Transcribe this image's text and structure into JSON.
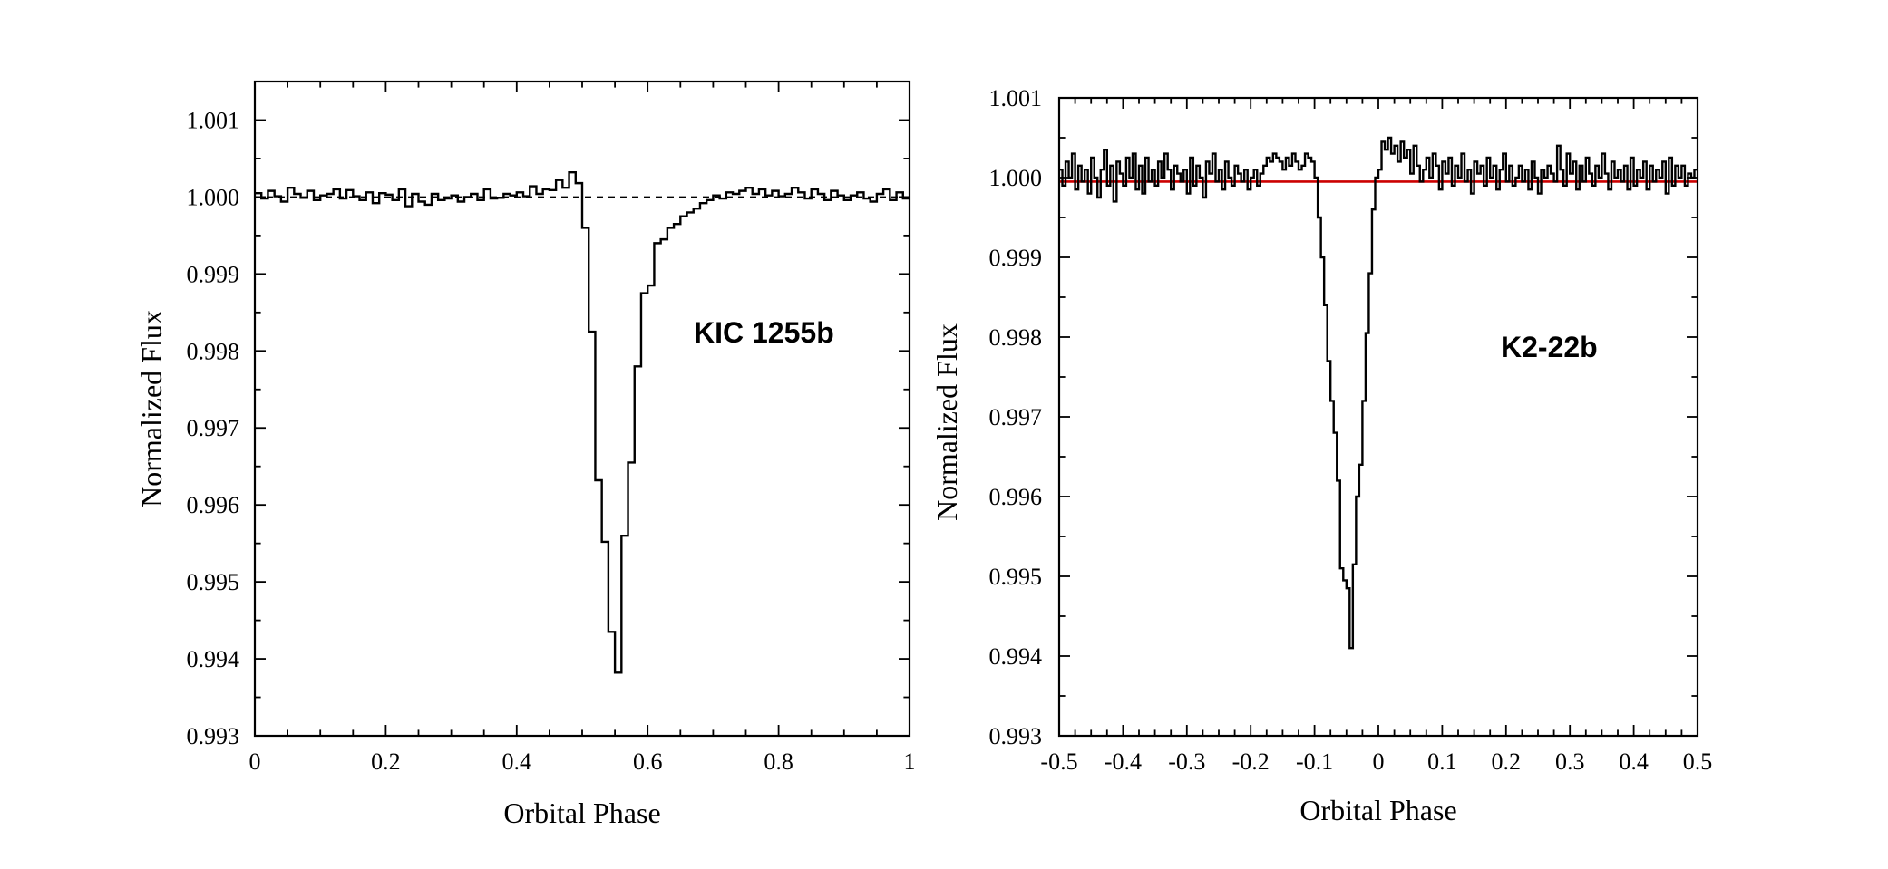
{
  "chart_data": [
    {
      "type": "line",
      "step": true,
      "annotation": "KIC 1255b",
      "xlabel": "Orbital Phase",
      "ylabel": "Normalized Flux",
      "xlim": [
        0,
        1
      ],
      "ylim": [
        0.993,
        1.0015
      ],
      "xticks": [
        0,
        0.2,
        0.4,
        0.6,
        0.8,
        1
      ],
      "xtick_labels": [
        "0",
        "0.2",
        "0.4",
        "0.6",
        "0.8",
        "1"
      ],
      "yticks": [
        0.993,
        0.994,
        0.995,
        0.996,
        0.997,
        0.998,
        0.999,
        1.0,
        1.001
      ],
      "ytick_labels": [
        "0.993",
        "0.994",
        "0.995",
        "0.996",
        "0.997",
        "0.998",
        "0.999",
        "1.000",
        "1.001"
      ],
      "reference_line": {
        "y": 1.0,
        "style": "dashed",
        "color": "#000000"
      },
      "series_color": "#000000",
      "x": [
        0.0,
        0.01,
        0.02,
        0.03,
        0.04,
        0.05,
        0.06,
        0.07,
        0.08,
        0.09,
        0.1,
        0.11,
        0.12,
        0.13,
        0.14,
        0.15,
        0.16,
        0.17,
        0.18,
        0.19,
        0.2,
        0.21,
        0.22,
        0.23,
        0.24,
        0.25,
        0.26,
        0.27,
        0.28,
        0.29,
        0.3,
        0.31,
        0.32,
        0.33,
        0.34,
        0.35,
        0.36,
        0.37,
        0.38,
        0.39,
        0.4,
        0.41,
        0.42,
        0.43,
        0.44,
        0.45,
        0.46,
        0.47,
        0.48,
        0.49,
        0.5,
        0.51,
        0.52,
        0.53,
        0.54,
        0.55,
        0.56,
        0.57,
        0.58,
        0.59,
        0.6,
        0.61,
        0.62,
        0.63,
        0.64,
        0.65,
        0.66,
        0.67,
        0.68,
        0.69,
        0.7,
        0.71,
        0.72,
        0.73,
        0.74,
        0.75,
        0.76,
        0.77,
        0.78,
        0.79,
        0.8,
        0.81,
        0.82,
        0.83,
        0.84,
        0.85,
        0.86,
        0.87,
        0.88,
        0.89,
        0.9,
        0.91,
        0.92,
        0.93,
        0.94,
        0.95,
        0.96,
        0.97,
        0.98,
        0.99
      ],
      "y": [
        1.00005,
        0.99998,
        1.00008,
        1.00001,
        0.99994,
        1.00012,
        1.00004,
        0.99999,
        1.00008,
        0.99996,
        1.00002,
        1.00004,
        1.0001,
        0.99998,
        1.00009,
        1.00001,
        0.99996,
        1.00006,
        0.99992,
        1.00005,
        1.00003,
        0.99996,
        1.0001,
        0.99988,
        1.00004,
        0.99994,
        0.9999,
        1.00004,
        0.99996,
        0.99998,
        1.00002,
        0.99994,
        1.0,
        1.00004,
        0.99996,
        1.0001,
        0.99998,
        0.99999,
        1.00004,
        1.00002,
        1.00006,
        1.00001,
        1.00014,
        1.00004,
        1.0001,
        1.00009,
        1.00022,
        1.00012,
        1.00032,
        1.00018,
        0.9996,
        0.99825,
        0.99632,
        0.99552,
        0.99435,
        0.99382,
        0.9956,
        0.99655,
        0.9978,
        0.99875,
        0.99885,
        0.9994,
        0.99945,
        0.9996,
        0.99965,
        0.99975,
        0.9998,
        0.99985,
        0.99992,
        0.99996,
        1.00002,
        0.99998,
        1.00006,
        1.00004,
        1.00008,
        1.00012,
        1.00004,
        1.0001,
        1.00002,
        1.00008,
        1.00001,
        1.00004,
        1.00012,
        1.00006,
        0.99998,
        1.0001,
        1.00004,
        0.99996,
        1.00008,
        1.00002,
        0.99996,
        1.00002,
        1.00006,
        0.99998,
        0.99994,
        1.00004,
        1.0001,
        0.99996,
        1.00006,
        0.99998
      ]
    },
    {
      "type": "line",
      "step": true,
      "annotation": "K2-22b",
      "xlabel": "Orbital Phase",
      "ylabel": "Normalized Flux",
      "xlim": [
        -0.5,
        0.5
      ],
      "ylim": [
        0.993,
        1.001
      ],
      "xticks": [
        -0.5,
        -0.4,
        -0.3,
        -0.2,
        -0.1,
        0,
        0.1,
        0.2,
        0.3,
        0.4,
        0.5
      ],
      "xtick_labels": [
        "-0.5",
        "-0.4",
        "-0.3",
        "-0.2",
        "-0.1",
        "0",
        "0.1",
        "0.2",
        "0.3",
        "0.4",
        "0.5"
      ],
      "yticks": [
        0.993,
        0.994,
        0.995,
        0.996,
        0.997,
        0.998,
        0.999,
        1.0,
        1.001
      ],
      "ytick_labels": [
        "0.993",
        "0.994",
        "0.995",
        "0.996",
        "0.997",
        "0.998",
        "0.999",
        "1.000",
        "1.001"
      ],
      "reference_line": {
        "y": 0.99995,
        "style": "solid",
        "color": "#cc0000"
      },
      "series_color": "#000000",
      "x": [
        -0.5,
        -0.495,
        -0.49,
        -0.485,
        -0.48,
        -0.475,
        -0.47,
        -0.465,
        -0.46,
        -0.455,
        -0.45,
        -0.445,
        -0.44,
        -0.435,
        -0.43,
        -0.425,
        -0.42,
        -0.415,
        -0.41,
        -0.405,
        -0.4,
        -0.395,
        -0.39,
        -0.385,
        -0.38,
        -0.375,
        -0.37,
        -0.365,
        -0.36,
        -0.355,
        -0.35,
        -0.345,
        -0.34,
        -0.335,
        -0.33,
        -0.325,
        -0.32,
        -0.315,
        -0.31,
        -0.305,
        -0.3,
        -0.295,
        -0.29,
        -0.285,
        -0.28,
        -0.275,
        -0.27,
        -0.265,
        -0.26,
        -0.255,
        -0.25,
        -0.245,
        -0.24,
        -0.235,
        -0.23,
        -0.225,
        -0.22,
        -0.215,
        -0.21,
        -0.205,
        -0.2,
        -0.195,
        -0.19,
        -0.185,
        -0.18,
        -0.175,
        -0.17,
        -0.165,
        -0.16,
        -0.155,
        -0.15,
        -0.145,
        -0.14,
        -0.135,
        -0.13,
        -0.125,
        -0.12,
        -0.115,
        -0.11,
        -0.105,
        -0.1,
        -0.095,
        -0.09,
        -0.085,
        -0.08,
        -0.075,
        -0.07,
        -0.065,
        -0.06,
        -0.055,
        -0.05,
        -0.045,
        -0.04,
        -0.035,
        -0.03,
        -0.025,
        -0.02,
        -0.015,
        -0.01,
        -0.005,
        0.0,
        0.005,
        0.01,
        0.015,
        0.02,
        0.025,
        0.03,
        0.035,
        0.04,
        0.045,
        0.05,
        0.055,
        0.06,
        0.065,
        0.07,
        0.075,
        0.08,
        0.085,
        0.09,
        0.095,
        0.1,
        0.105,
        0.11,
        0.115,
        0.12,
        0.125,
        0.13,
        0.135,
        0.14,
        0.145,
        0.15,
        0.155,
        0.16,
        0.165,
        0.17,
        0.175,
        0.18,
        0.185,
        0.19,
        0.195,
        0.2,
        0.205,
        0.21,
        0.215,
        0.22,
        0.225,
        0.23,
        0.235,
        0.24,
        0.245,
        0.25,
        0.255,
        0.26,
        0.265,
        0.27,
        0.275,
        0.28,
        0.285,
        0.29,
        0.295,
        0.3,
        0.305,
        0.31,
        0.315,
        0.32,
        0.325,
        0.33,
        0.335,
        0.34,
        0.345,
        0.35,
        0.355,
        0.36,
        0.365,
        0.37,
        0.375,
        0.38,
        0.385,
        0.39,
        0.395,
        0.4,
        0.405,
        0.41,
        0.415,
        0.42,
        0.425,
        0.43,
        0.435,
        0.44,
        0.445,
        0.45,
        0.455,
        0.46,
        0.465,
        0.47,
        0.475,
        0.48,
        0.485,
        0.49,
        0.495
      ],
      "y": [
        1.0001,
        0.9999,
        1.0002,
        1.0,
        1.0003,
        0.99985,
        1.00015,
        0.99995,
        1.0001,
        0.9998,
        1.00025,
        1.0,
        0.99975,
        1.0001,
        1.00035,
        0.9999,
        1.00015,
        0.9997,
        1.0002,
        1.00005,
        0.9999,
        1.00025,
        1.0,
        1.0003,
        0.99985,
        1.00015,
        0.9998,
        1.00025,
        0.99995,
        1.0001,
        0.9999,
        1.0002,
        1.0,
        1.0003,
        1.0001,
        0.99985,
        1.00015,
        1.00005,
        0.99995,
        1.0001,
        0.9998,
        1.00025,
        0.9999,
        1.00015,
        1.0,
        0.99975,
        1.0002,
        1.00005,
        1.0003,
        0.99995,
        1.0001,
        0.99985,
        1.0002,
        1.0,
        0.9999,
        1.00015,
        1.00005,
        0.99995,
        1.0001,
        0.99985,
        1.0,
        1.0001,
        0.9999,
        1.00005,
        1.00015,
        1.00025,
        1.0002,
        1.0003,
        1.00025,
        1.0002,
        1.0001,
        1.00025,
        1.00015,
        1.0003,
        1.0002,
        1.0001,
        1.00015,
        1.0003,
        1.00025,
        1.0002,
        1.0,
        0.9995,
        0.999,
        0.9984,
        0.9977,
        0.9972,
        0.9968,
        0.9962,
        0.9951,
        0.99495,
        0.99485,
        0.9941,
        0.99515,
        0.996,
        0.9964,
        0.9972,
        0.99805,
        0.9988,
        0.9996,
        1.0,
        1.0001,
        1.00045,
        1.00035,
        1.0005,
        1.0003,
        1.0004,
        1.0002,
        1.00045,
        1.00025,
        1.00035,
        1.00005,
        1.0004,
        1.00015,
        0.99995,
        1.0001,
        1.00025,
        1.0,
        1.0003,
        1.00015,
        0.99985,
        1.0002,
        1.00005,
        1.00025,
        0.9999,
        1.00015,
        1.0,
        1.0003,
        0.99995,
        1.0001,
        0.9998,
        1.0002,
        1.00005,
        1.00015,
        0.9999,
        1.00025,
        1.0,
        1.00015,
        0.99985,
        1.0001,
        1.0003,
        0.99995,
        1.00015,
        0.9999,
        1.0,
        1.00015,
        0.99995,
        1.0001,
        0.99985,
        1.0002,
        1.0,
        0.9998,
        1.0001,
        1.0,
        1.00015,
        1.00005,
        0.99995,
        1.0004,
        1.0001,
        0.9999,
        1.0003,
        1.00005,
        1.0002,
        0.99985,
        1.00015,
        0.99995,
        1.00025,
        1.00005,
        0.9999,
        1.00015,
        1.0,
        1.0003,
        1.00005,
        0.99985,
        1.0002,
        1.0,
        1.0001,
        0.99995,
        1.00015,
        0.99985,
        1.00025,
        0.9999,
        1.0001,
        1.0,
        1.0002,
        0.99985,
        1.00015,
        0.99995,
        1.0001,
        1.0,
        1.0002,
        0.9998,
        1.00025,
        0.9999,
        1.00015,
        1.0,
        1.00015,
        0.9999,
        1.00005,
        1.0,
        1.0001
      ]
    }
  ]
}
